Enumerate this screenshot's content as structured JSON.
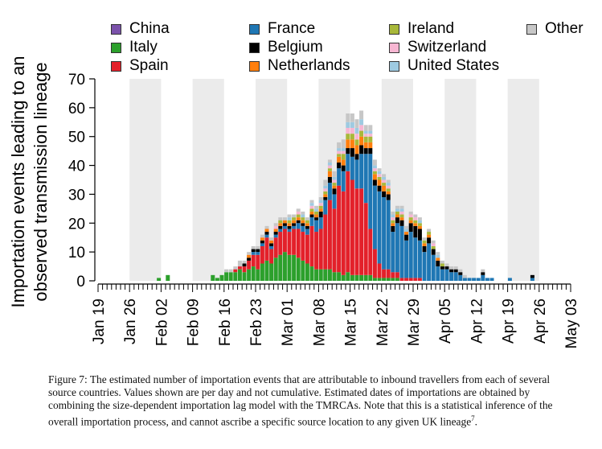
{
  "chart_data": {
    "type": "bar",
    "stacked": true,
    "ylabel": "Importation events leading to an\nobserved transmission lineage",
    "xlabel": "",
    "ylim": [
      0,
      70
    ],
    "yticks": [
      0,
      10,
      20,
      30,
      40,
      50,
      60,
      70
    ],
    "x_tick_labels": [
      "Jan 19",
      "Jan 26",
      "Feb 02",
      "Feb 09",
      "Feb 16",
      "Feb 23",
      "Mar 01",
      "Mar 08",
      "Mar 15",
      "Mar 22",
      "Mar 29",
      "Apr 05",
      "Apr 12",
      "Apr 19",
      "Apr 26",
      "May 03"
    ],
    "x_start": "2020-01-19",
    "x_end": "2020-05-03",
    "weekly_background_bands": true,
    "legend_placement": "top",
    "series": [
      {
        "name": "China",
        "color": "#7b52ab"
      },
      {
        "name": "Italy",
        "color": "#2ca02c"
      },
      {
        "name": "Spain",
        "color": "#e3202a"
      },
      {
        "name": "France",
        "color": "#1f77b4"
      },
      {
        "name": "Belgium",
        "color": "#000000"
      },
      {
        "name": "Netherlands",
        "color": "#ff7f0e"
      },
      {
        "name": "Ireland",
        "color": "#a8b83a"
      },
      {
        "name": "Switzerland",
        "color": "#f7b6d2"
      },
      {
        "name": "United States",
        "color": "#9ecae1"
      },
      {
        "name": "Other",
        "color": "#c7c7c7"
      }
    ],
    "legend_order": [
      [
        "China",
        "Italy",
        "Spain"
      ],
      [
        "France",
        "Belgium",
        "Netherlands"
      ],
      [
        "Ireland",
        "Switzerland",
        "United States"
      ],
      [
        "Other"
      ]
    ],
    "days": [
      {
        "date": "2020-02-01",
        "values": [
          0,
          1,
          0,
          0,
          0,
          0,
          0,
          0,
          0,
          0
        ]
      },
      {
        "date": "2020-02-03",
        "values": [
          0,
          2,
          0,
          0,
          0,
          0,
          0,
          0,
          0,
          0
        ]
      },
      {
        "date": "2020-02-13",
        "values": [
          0,
          2,
          0,
          0,
          0,
          0,
          0,
          0,
          0,
          0
        ]
      },
      {
        "date": "2020-02-14",
        "values": [
          0,
          1,
          0,
          0,
          0,
          0,
          0,
          0,
          0,
          0
        ]
      },
      {
        "date": "2020-02-15",
        "values": [
          0,
          2,
          0,
          0,
          0,
          0,
          0,
          0,
          0,
          0
        ]
      },
      {
        "date": "2020-02-16",
        "values": [
          0,
          3,
          0,
          0,
          0,
          0,
          0,
          0,
          0,
          1
        ]
      },
      {
        "date": "2020-02-17",
        "values": [
          0,
          3,
          0,
          0,
          0,
          0,
          0,
          0,
          0,
          1
        ]
      },
      {
        "date": "2020-02-18",
        "values": [
          0,
          3,
          1,
          0,
          0,
          0,
          0,
          0,
          0,
          1
        ]
      },
      {
        "date": "2020-02-19",
        "values": [
          0,
          4,
          1,
          0,
          0,
          0,
          0,
          0,
          0,
          2
        ]
      },
      {
        "date": "2020-02-20",
        "values": [
          0,
          3,
          2,
          0,
          1,
          0,
          0,
          0,
          0,
          1
        ]
      },
      {
        "date": "2020-02-21",
        "values": [
          0,
          4,
          3,
          0,
          1,
          1,
          0,
          0,
          0,
          1
        ]
      },
      {
        "date": "2020-02-22",
        "values": [
          0,
          5,
          4,
          1,
          1,
          0,
          0,
          0,
          0,
          1
        ]
      },
      {
        "date": "2020-02-23",
        "values": [
          0,
          4,
          5,
          1,
          1,
          0,
          0,
          0,
          0,
          1
        ]
      },
      {
        "date": "2020-02-24",
        "values": [
          0,
          6,
          6,
          1,
          1,
          1,
          0,
          0,
          0,
          1
        ]
      },
      {
        "date": "2020-02-25",
        "values": [
          0,
          7,
          8,
          1,
          1,
          1,
          0,
          0,
          0,
          1
        ]
      },
      {
        "date": "2020-02-26",
        "values": [
          0,
          6,
          5,
          1,
          1,
          1,
          0,
          0,
          0,
          1
        ]
      },
      {
        "date": "2020-02-27",
        "values": [
          0,
          8,
          7,
          1,
          1,
          1,
          0,
          1,
          0,
          1
        ]
      },
      {
        "date": "2020-02-28",
        "values": [
          0,
          9,
          8,
          1,
          1,
          1,
          1,
          0,
          0,
          1
        ]
      },
      {
        "date": "2020-02-29",
        "values": [
          0,
          10,
          8,
          1,
          1,
          1,
          0,
          0,
          0,
          1
        ]
      },
      {
        "date": "2020-03-01",
        "values": [
          0,
          9,
          8,
          1,
          1,
          1,
          1,
          0,
          1,
          1
        ]
      },
      {
        "date": "2020-03-02",
        "values": [
          0,
          9,
          9,
          1,
          1,
          1,
          1,
          0,
          0,
          1
        ]
      },
      {
        "date": "2020-03-03",
        "values": [
          0,
          8,
          10,
          2,
          1,
          1,
          1,
          1,
          0,
          1
        ]
      },
      {
        "date": "2020-03-04",
        "values": [
          0,
          7,
          10,
          2,
          1,
          1,
          1,
          0,
          1,
          1
        ]
      },
      {
        "date": "2020-03-05",
        "values": [
          0,
          6,
          10,
          2,
          1,
          1,
          1,
          0,
          0,
          1
        ]
      },
      {
        "date": "2020-03-06",
        "values": [
          0,
          5,
          14,
          3,
          1,
          1,
          1,
          1,
          1,
          1
        ]
      },
      {
        "date": "2020-03-07",
        "values": [
          0,
          4,
          13,
          4,
          1,
          1,
          1,
          0,
          1,
          1
        ]
      },
      {
        "date": "2020-03-08",
        "values": [
          0,
          4,
          14,
          4,
          2,
          1,
          1,
          1,
          1,
          1
        ]
      },
      {
        "date": "2020-03-09",
        "values": [
          0,
          4,
          19,
          5,
          1,
          1,
          1,
          1,
          1,
          2
        ]
      },
      {
        "date": "2020-03-10",
        "values": [
          0,
          4,
          24,
          6,
          2,
          2,
          1,
          1,
          1,
          1
        ]
      },
      {
        "date": "2020-03-11",
        "values": [
          0,
          3,
          22,
          5,
          2,
          1,
          1,
          1,
          1,
          2
        ]
      },
      {
        "date": "2020-03-12",
        "values": [
          0,
          3,
          30,
          6,
          2,
          2,
          1,
          1,
          1,
          2
        ]
      },
      {
        "date": "2020-03-13",
        "values": [
          0,
          2,
          29,
          7,
          2,
          2,
          2,
          1,
          1,
          3
        ]
      },
      {
        "date": "2020-03-14",
        "values": [
          0,
          3,
          35,
          6,
          2,
          3,
          2,
          2,
          2,
          3
        ]
      },
      {
        "date": "2020-03-15",
        "values": [
          0,
          2,
          33,
          8,
          3,
          3,
          2,
          2,
          2,
          3
        ]
      },
      {
        "date": "2020-03-16",
        "values": [
          0,
          2,
          30,
          10,
          2,
          3,
          2,
          2,
          2,
          3
        ]
      },
      {
        "date": "2020-03-17",
        "values": [
          0,
          2,
          30,
          12,
          3,
          3,
          2,
          2,
          2,
          3
        ]
      },
      {
        "date": "2020-03-18",
        "values": [
          0,
          2,
          25,
          17,
          2,
          2,
          2,
          1,
          1,
          2
        ]
      },
      {
        "date": "2020-03-19",
        "values": [
          0,
          2,
          16,
          26,
          2,
          2,
          2,
          1,
          1,
          2
        ]
      },
      {
        "date": "2020-03-20",
        "values": [
          0,
          1,
          10,
          22,
          2,
          2,
          1,
          1,
          1,
          2
        ]
      },
      {
        "date": "2020-03-21",
        "values": [
          0,
          1,
          5,
          25,
          2,
          2,
          1,
          1,
          1,
          1
        ]
      },
      {
        "date": "2020-03-22",
        "values": [
          0,
          1,
          3,
          25,
          2,
          2,
          1,
          1,
          1,
          1
        ]
      },
      {
        "date": "2020-03-23",
        "values": [
          0,
          1,
          3,
          24,
          2,
          1,
          1,
          1,
          1,
          1
        ]
      },
      {
        "date": "2020-03-24",
        "values": [
          0,
          1,
          2,
          14,
          2,
          1,
          1,
          1,
          1,
          1
        ]
      },
      {
        "date": "2020-03-25",
        "values": [
          0,
          1,
          2,
          17,
          2,
          1,
          1,
          0,
          1,
          1
        ]
      },
      {
        "date": "2020-03-26",
        "values": [
          0,
          0,
          1,
          18,
          2,
          1,
          1,
          1,
          1,
          1
        ]
      },
      {
        "date": "2020-03-27",
        "values": [
          0,
          0,
          1,
          13,
          2,
          1,
          0,
          0,
          1,
          1
        ]
      },
      {
        "date": "2020-03-28",
        "values": [
          0,
          0,
          1,
          16,
          3,
          1,
          1,
          1,
          0,
          1
        ]
      },
      {
        "date": "2020-03-29",
        "values": [
          0,
          0,
          1,
          14,
          4,
          1,
          1,
          1,
          0,
          1
        ]
      },
      {
        "date": "2020-03-30",
        "values": [
          0,
          0,
          1,
          13,
          4,
          1,
          1,
          0,
          1,
          1
        ]
      },
      {
        "date": "2020-03-31",
        "values": [
          0,
          0,
          0,
          10,
          2,
          1,
          1,
          0,
          0,
          1
        ]
      },
      {
        "date": "2020-04-01",
        "values": [
          0,
          0,
          0,
          13,
          2,
          1,
          1,
          0,
          0,
          1
        ]
      },
      {
        "date": "2020-04-02",
        "values": [
          0,
          0,
          0,
          9,
          2,
          0,
          1,
          1,
          0,
          1
        ]
      },
      {
        "date": "2020-04-03",
        "values": [
          0,
          0,
          0,
          5,
          2,
          1,
          0,
          0,
          1,
          1
        ]
      },
      {
        "date": "2020-04-04",
        "values": [
          0,
          0,
          0,
          4,
          1,
          0,
          1,
          0,
          0,
          1
        ]
      },
      {
        "date": "2020-04-05",
        "values": [
          0,
          0,
          0,
          4,
          1,
          0,
          0,
          0,
          0,
          1
        ]
      },
      {
        "date": "2020-04-06",
        "values": [
          0,
          0,
          0,
          3,
          1,
          0,
          0,
          0,
          0,
          1
        ]
      },
      {
        "date": "2020-04-07",
        "values": [
          0,
          0,
          0,
          3,
          1,
          0,
          0,
          0,
          0,
          1
        ]
      },
      {
        "date": "2020-04-08",
        "values": [
          0,
          0,
          0,
          2,
          1,
          0,
          0,
          0,
          0,
          1
        ]
      },
      {
        "date": "2020-04-09",
        "values": [
          0,
          0,
          0,
          1,
          0,
          0,
          0,
          0,
          0,
          1
        ]
      },
      {
        "date": "2020-04-10",
        "values": [
          0,
          0,
          0,
          1,
          0,
          0,
          0,
          0,
          0,
          0
        ]
      },
      {
        "date": "2020-04-11",
        "values": [
          0,
          0,
          0,
          1,
          0,
          0,
          0,
          0,
          0,
          0
        ]
      },
      {
        "date": "2020-04-12",
        "values": [
          0,
          0,
          0,
          1,
          0,
          0,
          0,
          0,
          0,
          0
        ]
      },
      {
        "date": "2020-04-13",
        "values": [
          0,
          0,
          0,
          2,
          1,
          0,
          0,
          0,
          0,
          1
        ]
      },
      {
        "date": "2020-04-14",
        "values": [
          0,
          0,
          0,
          1,
          0,
          0,
          0,
          0,
          0,
          0
        ]
      },
      {
        "date": "2020-04-15",
        "values": [
          0,
          0,
          0,
          1,
          0,
          0,
          0,
          0,
          0,
          0
        ]
      },
      {
        "date": "2020-04-19",
        "values": [
          0,
          0,
          0,
          1,
          0,
          0,
          0,
          0,
          0,
          0
        ]
      },
      {
        "date": "2020-04-24",
        "values": [
          0,
          0,
          0,
          1,
          1,
          0,
          0,
          0,
          0,
          0
        ]
      }
    ]
  },
  "caption": "Figure 7: The estimated number of importation events that are attributable to inbound travellers from each of several source countries. Values shown are per day and not cumulative. Estimated dates of importations are obtained by combining the size-dependent importation lag model with the TMRCAs. Note that this is a statistical inference of the overall importation process, and cannot ascribe a specific source location to any given UK lineage",
  "caption_ref": "7"
}
